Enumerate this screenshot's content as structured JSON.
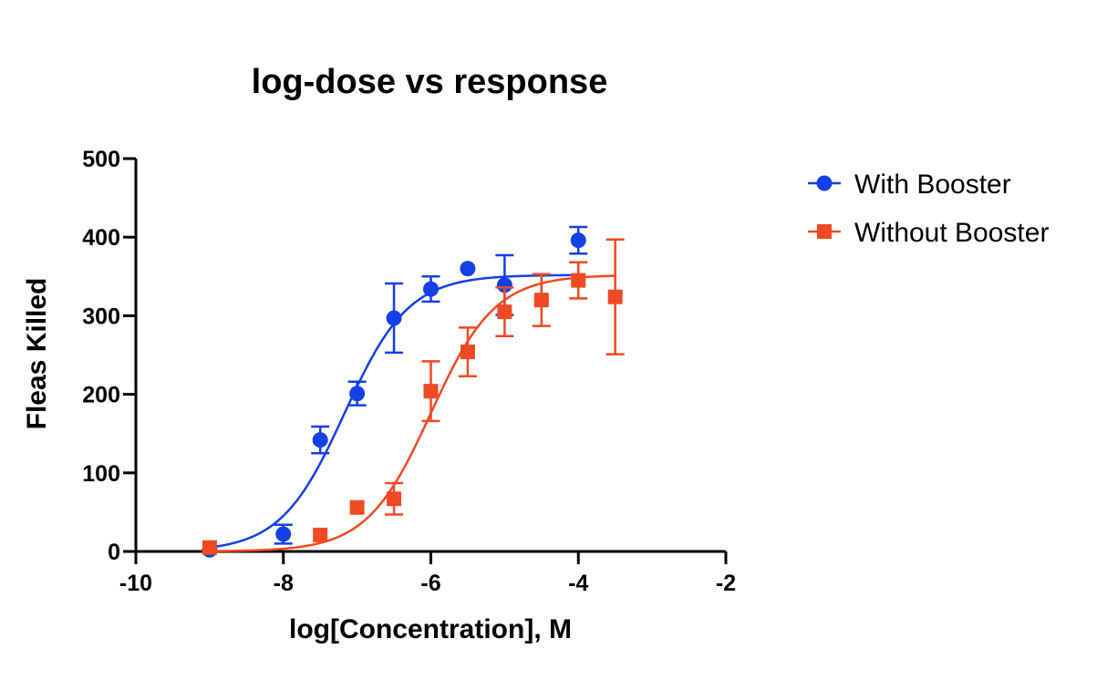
{
  "chart_data": {
    "type": "scatter",
    "title": "log-dose vs response",
    "xlabel": "log[Concentration], M",
    "ylabel": "Fleas Killed",
    "xlim": [
      -10,
      -2
    ],
    "ylim": [
      0,
      500
    ],
    "xticks": [
      -10,
      -8,
      -6,
      -4,
      -2
    ],
    "yticks": [
      0,
      100,
      200,
      300,
      400,
      500
    ],
    "grid": false,
    "legend_position": "top-right",
    "series": [
      {
        "name": "With Booster",
        "marker": "circle",
        "color": "#1440e6",
        "points": [
          {
            "x": -9.0,
            "y": 2,
            "err": 0
          },
          {
            "x": -8.0,
            "y": 22,
            "err": 12
          },
          {
            "x": -7.5,
            "y": 142,
            "err": 17
          },
          {
            "x": -7.0,
            "y": 201,
            "err": 15
          },
          {
            "x": -6.5,
            "y": 297,
            "err": 44
          },
          {
            "x": -6.0,
            "y": 334,
            "err": 16
          },
          {
            "x": -5.5,
            "y": 360,
            "err": 0
          },
          {
            "x": -5.0,
            "y": 339,
            "err": 38
          },
          {
            "x": -4.0,
            "y": 396,
            "err": 17
          }
        ],
        "fit": {
          "bottom": 0,
          "top": 352,
          "log_ec50": -7.17,
          "hill": 1.0,
          "x_range": [
            -9,
            -4
          ]
        }
      },
      {
        "name": "Without Booster",
        "marker": "square",
        "color": "#ef4a24",
        "points": [
          {
            "x": -9.0,
            "y": 5,
            "err": 0
          },
          {
            "x": -7.5,
            "y": 21,
            "err": 0
          },
          {
            "x": -7.0,
            "y": 56,
            "err": 0
          },
          {
            "x": -6.5,
            "y": 67,
            "err": 20
          },
          {
            "x": -6.0,
            "y": 204,
            "err": 38
          },
          {
            "x": -5.5,
            "y": 254,
            "err": 31
          },
          {
            "x": -5.0,
            "y": 305,
            "err": 31
          },
          {
            "x": -4.5,
            "y": 320,
            "err": 33
          },
          {
            "x": -4.0,
            "y": 345,
            "err": 23
          },
          {
            "x": -3.5,
            "y": 324,
            "err": 73
          }
        ],
        "fit": {
          "bottom": 0,
          "top": 352,
          "log_ec50": -6.0,
          "hill": 1.0,
          "x_range": [
            -9,
            -3.5
          ]
        }
      }
    ]
  }
}
